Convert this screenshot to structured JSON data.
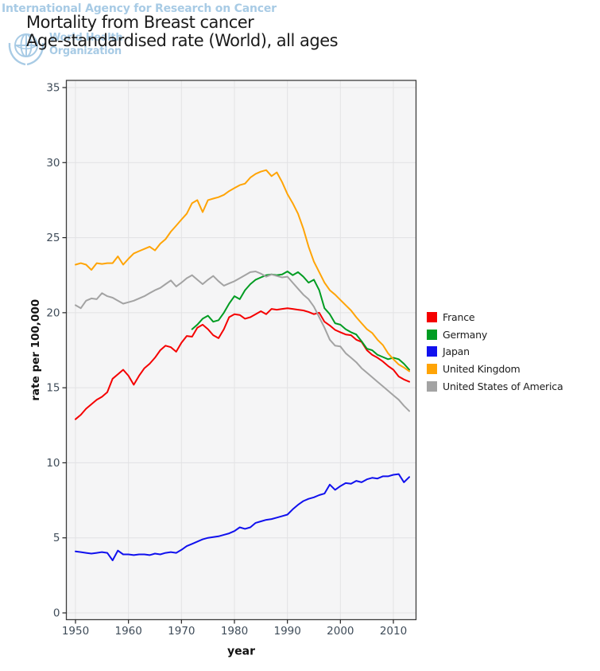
{
  "header": {
    "watermark_line1": "International Agency for Research on Cancer",
    "watermark_line2": "World Health",
    "watermark_line3": "Organization",
    "title": "Mortality from Breast cancer",
    "subtitle": "Age-standardised rate (World), all ages"
  },
  "colors": {
    "watermark_blue": "#a8cbe5",
    "title_text": "#1b1b1b",
    "tick_label": "#3f4c59",
    "axis_title": "#111111",
    "panel_bg": "#f5f5f6",
    "grid": "#e2e2e4",
    "panel_border": "#3c3c3c",
    "france": "#f50000",
    "germany": "#009c22",
    "japan": "#1111ee",
    "united_kingdom": "#ffa406",
    "usa": "#a3a3a3"
  },
  "legend": {
    "items": [
      {
        "id": "france",
        "label": "France",
        "color": "#f50000"
      },
      {
        "id": "germany",
        "label": "Germany",
        "color": "#009c22"
      },
      {
        "id": "japan",
        "label": "Japan",
        "color": "#1111ee"
      },
      {
        "id": "united-kingdom",
        "label": "United Kingdom",
        "color": "#ffa406"
      },
      {
        "id": "usa",
        "label": "United States of America",
        "color": "#a3a3a3"
      }
    ]
  },
  "chart_data": {
    "type": "line",
    "title": "Mortality from Breast cancer",
    "subtitle": "Age-standardised rate (World), all ages",
    "xlabel": "year",
    "ylabel": "rate per 100,000",
    "x_ticks": [
      1950,
      1960,
      1970,
      1980,
      1990,
      2000,
      2010
    ],
    "y_ticks": [
      0,
      5,
      10,
      15,
      20,
      25,
      30,
      35
    ],
    "ylim": [
      0,
      35
    ],
    "xlim": [
      1948.2,
      2014.3
    ],
    "grid": true,
    "legend_position": "right-middle",
    "series": [
      {
        "name": "France",
        "color": "#f50000",
        "start_year": 1950,
        "end_year": 2013,
        "values": [
          12.9,
          13.2,
          13.6,
          13.9,
          14.2,
          14.4,
          14.7,
          15.6,
          15.9,
          16.2,
          15.8,
          15.2,
          15.8,
          16.3,
          16.6,
          17.0,
          17.5,
          17.8,
          17.7,
          17.4,
          18.0,
          18.45,
          18.4,
          19.0,
          19.2,
          18.9,
          18.5,
          18.3,
          18.9,
          19.7,
          19.9,
          19.85,
          19.6,
          19.7,
          19.9,
          20.1,
          19.9,
          20.25,
          20.2,
          20.25,
          20.3,
          20.25,
          20.2,
          20.15,
          20.05,
          19.9,
          20.0,
          19.4,
          19.15,
          18.85,
          18.7,
          18.55,
          18.5,
          18.2,
          18.05,
          17.5,
          17.2,
          17.0,
          16.75,
          16.45,
          16.2,
          15.75,
          15.55,
          15.4
        ]
      },
      {
        "name": "Germany",
        "color": "#009c22",
        "start_year": 1972,
        "end_year": 2013,
        "values": [
          18.9,
          19.2,
          19.6,
          19.8,
          19.4,
          19.5,
          20.0,
          20.6,
          21.1,
          20.9,
          21.5,
          21.9,
          22.2,
          22.35,
          22.5,
          22.55,
          22.5,
          22.55,
          22.75,
          22.5,
          22.7,
          22.4,
          22.0,
          22.2,
          21.5,
          20.3,
          19.9,
          19.3,
          19.2,
          18.9,
          18.7,
          18.55,
          18.1,
          17.6,
          17.5,
          17.2,
          17.05,
          16.9,
          17.0,
          16.9,
          16.6,
          16.2
        ]
      },
      {
        "name": "Japan",
        "color": "#1111ee",
        "start_year": 1950,
        "end_year": 2013,
        "values": [
          4.1,
          4.05,
          4.0,
          3.95,
          4.0,
          4.05,
          4.0,
          3.5,
          4.15,
          3.9,
          3.9,
          3.85,
          3.9,
          3.9,
          3.85,
          3.95,
          3.9,
          4.0,
          4.05,
          4.0,
          4.2,
          4.45,
          4.6,
          4.75,
          4.9,
          5.0,
          5.05,
          5.1,
          5.2,
          5.3,
          5.45,
          5.7,
          5.6,
          5.7,
          6.0,
          6.1,
          6.2,
          6.25,
          6.35,
          6.45,
          6.55,
          6.9,
          7.2,
          7.45,
          7.6,
          7.7,
          7.85,
          7.95,
          8.55,
          8.2,
          8.45,
          8.65,
          8.6,
          8.8,
          8.7,
          8.9,
          9.0,
          8.95,
          9.1,
          9.1,
          9.2,
          9.25,
          8.7,
          9.05
        ]
      },
      {
        "name": "United Kingdom",
        "color": "#ffa406",
        "start_year": 1950,
        "end_year": 2013,
        "values": [
          23.2,
          23.3,
          23.2,
          22.85,
          23.3,
          23.25,
          23.3,
          23.3,
          23.75,
          23.2,
          23.6,
          23.95,
          24.1,
          24.25,
          24.4,
          24.15,
          24.6,
          24.9,
          25.4,
          25.8,
          26.2,
          26.6,
          27.3,
          27.5,
          26.7,
          27.5,
          27.6,
          27.7,
          27.85,
          28.1,
          28.3,
          28.5,
          28.6,
          29.0,
          29.25,
          29.4,
          29.5,
          29.1,
          29.35,
          28.7,
          27.9,
          27.3,
          26.6,
          25.6,
          24.4,
          23.4,
          22.7,
          22.0,
          21.5,
          21.2,
          20.85,
          20.5,
          20.15,
          19.7,
          19.3,
          18.9,
          18.65,
          18.2,
          17.85,
          17.3,
          16.9,
          16.55,
          16.35,
          16.1
        ]
      },
      {
        "name": "United States of America",
        "color": "#a3a3a3",
        "start_year": 1950,
        "end_year": 2013,
        "values": [
          20.5,
          20.3,
          20.8,
          20.95,
          20.9,
          21.3,
          21.1,
          21.0,
          20.8,
          20.6,
          20.7,
          20.8,
          20.95,
          21.1,
          21.3,
          21.5,
          21.65,
          21.9,
          22.15,
          21.75,
          22.0,
          22.3,
          22.5,
          22.2,
          21.9,
          22.2,
          22.45,
          22.1,
          21.8,
          21.95,
          22.1,
          22.3,
          22.5,
          22.7,
          22.75,
          22.6,
          22.4,
          22.55,
          22.45,
          22.35,
          22.4,
          22.0,
          21.6,
          21.2,
          20.9,
          20.4,
          19.7,
          19.0,
          18.2,
          17.8,
          17.75,
          17.3,
          17.0,
          16.7,
          16.3,
          16.0,
          15.7,
          15.4,
          15.1,
          14.8,
          14.5,
          14.2,
          13.8,
          13.45
        ]
      }
    ]
  }
}
